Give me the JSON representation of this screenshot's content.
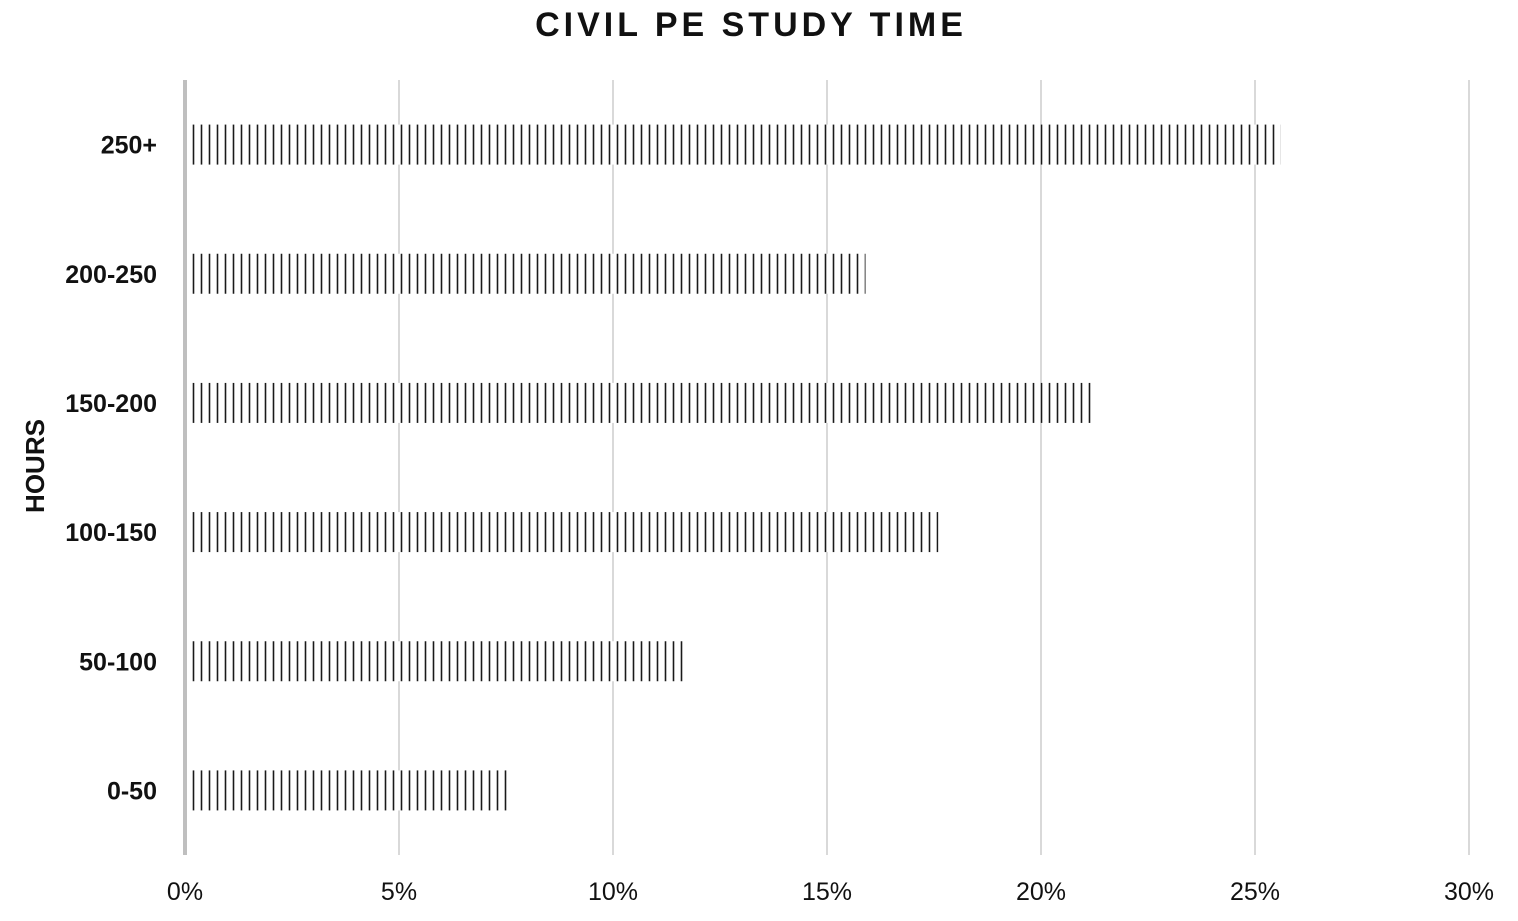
{
  "chart_data": {
    "type": "bar",
    "orientation": "horizontal",
    "title": "CIVIL PE STUDY TIME",
    "xlabel": "",
    "ylabel": "HOURS",
    "categories": [
      "0-50",
      "50-100",
      "100-150",
      "150-200",
      "200-250",
      "250+"
    ],
    "values": [
      7.6,
      11.7,
      17.6,
      21.2,
      15.9,
      25.6
    ],
    "value_unit": "%",
    "xlim": [
      0,
      30
    ],
    "xticks": [
      "0%",
      "5%",
      "10%",
      "15%",
      "20%",
      "25%",
      "30%"
    ],
    "grid": "vertical",
    "legend": "none",
    "bar_fill": "vertical-hatch",
    "colors": {
      "hatch": "#1a1a1a",
      "grid": "#d9d9d9",
      "axis": "#bfbfbf",
      "text": "#111111"
    }
  }
}
